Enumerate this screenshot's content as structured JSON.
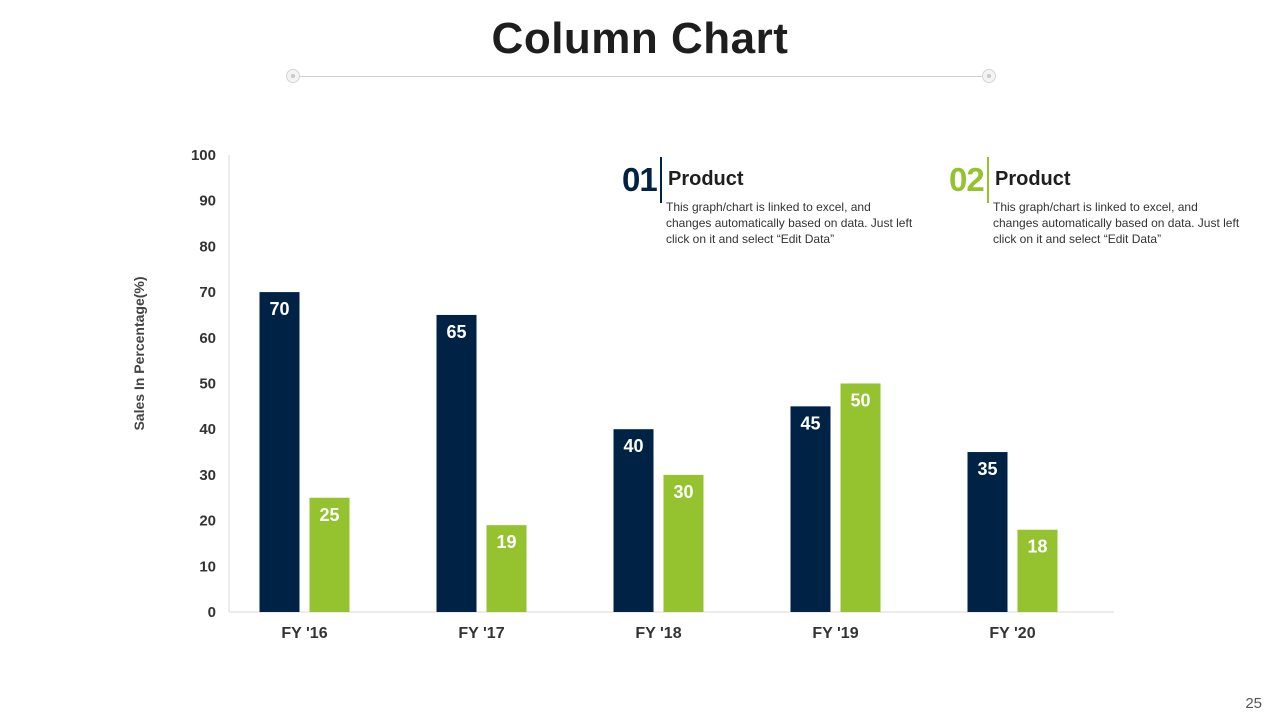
{
  "slide": {
    "title": "Column Chart",
    "page_number": "25"
  },
  "colors": {
    "series1": "#002244",
    "series2": "#95c22f",
    "axis": "#d9d9d9",
    "text": "#333333"
  },
  "legend": [
    {
      "number": "01",
      "heading": "Product",
      "description": "This graph/chart is linked to excel, and changes automatically based on data. Just left click on it and select “Edit Data”"
    },
    {
      "number": "02",
      "heading": "Product",
      "description": "This graph/chart is linked to excel, and changes automatically based on data. Just left click on it and select “Edit Data”"
    }
  ],
  "chart_data": {
    "type": "bar",
    "title": "Column Chart",
    "xlabel": "",
    "ylabel": "Sales In Percentage(%)",
    "ylim": [
      0,
      100
    ],
    "yticks": [
      0,
      10,
      20,
      30,
      40,
      50,
      60,
      70,
      80,
      90,
      100
    ],
    "grid": false,
    "legend_position": "top-right",
    "categories": [
      "FY '16",
      "FY '17",
      "FY '18",
      "FY '19",
      "FY '20"
    ],
    "series": [
      {
        "name": "Product 01",
        "values": [
          70,
          65,
          40,
          45,
          35
        ]
      },
      {
        "name": "Product 02",
        "values": [
          25,
          19,
          30,
          50,
          18
        ]
      }
    ]
  }
}
